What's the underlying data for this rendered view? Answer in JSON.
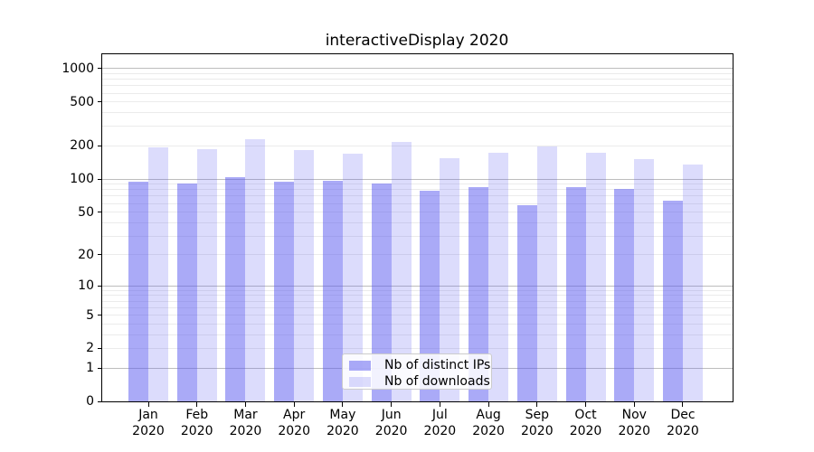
{
  "chart_data": {
    "type": "bar",
    "title": "interactiveDisplay 2020",
    "categories": [
      "Jan",
      "Feb",
      "Mar",
      "Apr",
      "May",
      "Jun",
      "Jul",
      "Aug",
      "Sep",
      "Oct",
      "Nov",
      "Dec"
    ],
    "category_year": "2020",
    "series": [
      {
        "name": "Nb of distinct IPs",
        "color": "rgba(92,92,240,0.52)",
        "values": [
          94,
          92,
          105,
          94,
          96,
          92,
          78,
          84,
          58,
          85,
          81,
          63
        ]
      },
      {
        "name": "Nb of downloads",
        "color": "rgba(92,92,240,0.215)",
        "values": [
          193,
          188,
          232,
          185,
          170,
          218,
          155,
          173,
          199,
          174,
          151,
          136
        ]
      }
    ],
    "yscale": "log1p",
    "ylim": [
      0,
      1350
    ],
    "yticks": [
      0,
      1,
      2,
      5,
      10,
      20,
      50,
      100,
      200,
      500,
      1000
    ],
    "ygrid_major": [
      1,
      10,
      100,
      1000
    ],
    "ygrid_minor_decades": [
      1,
      10,
      100
    ],
    "grid": true,
    "legend_position": "lower-center"
  },
  "colors": {
    "background": "#ffffff",
    "grid_major": "#bdbdbd",
    "grid_minor": "#ebebeb",
    "axis_line": "#000000",
    "text": "#000000",
    "legend_border": "#cccccc",
    "legend_bg": "rgba(255,255,255,0.85)"
  }
}
